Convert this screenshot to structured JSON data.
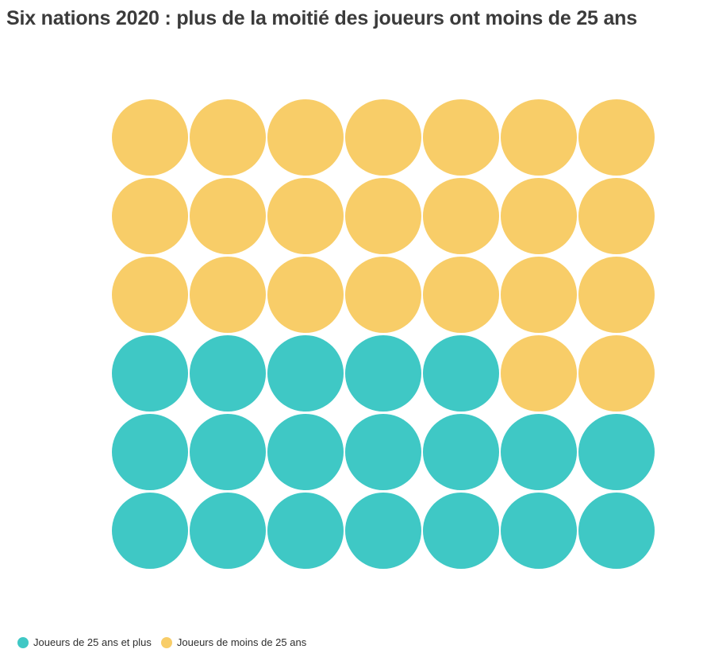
{
  "chart_data": {
    "type": "waffle",
    "title": "Six nations 2020 : plus de la moitié des joueurs ont moins de 25 ans",
    "rows": 6,
    "cols": 7,
    "total_units": 42,
    "categories": [
      {
        "id": "over25",
        "label": "Joueurs de 25 ans et plus",
        "color": "#3fc8c5",
        "count": 19
      },
      {
        "id": "under25",
        "label": "Joueurs de moins de 25 ans",
        "color": "#f8cd68",
        "count": 23
      }
    ],
    "grid": [
      [
        "under25",
        "under25",
        "under25",
        "under25",
        "under25",
        "under25",
        "under25"
      ],
      [
        "under25",
        "under25",
        "under25",
        "under25",
        "under25",
        "under25",
        "under25"
      ],
      [
        "under25",
        "under25",
        "under25",
        "under25",
        "under25",
        "under25",
        "under25"
      ],
      [
        "over25",
        "over25",
        "over25",
        "over25",
        "over25",
        "under25",
        "under25"
      ],
      [
        "over25",
        "over25",
        "over25",
        "over25",
        "over25",
        "over25",
        "over25"
      ],
      [
        "over25",
        "over25",
        "over25",
        "over25",
        "over25",
        "over25",
        "over25"
      ]
    ],
    "legend_position": "bottom-left",
    "background": "#ffffff",
    "title_color": "#3b3b3b"
  }
}
